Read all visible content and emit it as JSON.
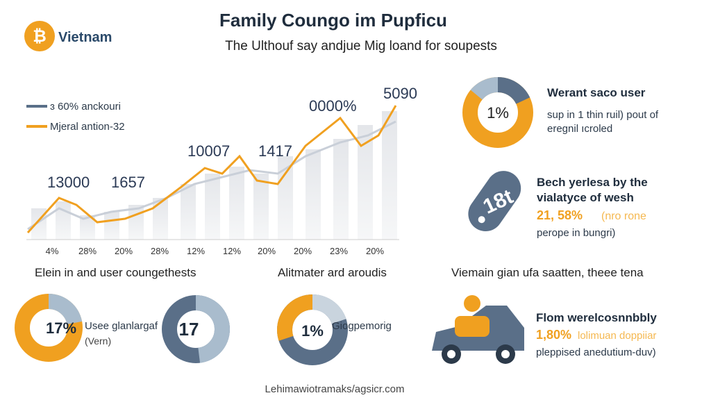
{
  "logo": {
    "icon": "₿",
    "name": "Vietnam"
  },
  "header": {
    "title": "Family Coungo im Pupficu",
    "subtitle": "The Ulthouf say andjue Mig loand for soupests"
  },
  "line_panel": {
    "legend": [
      "ɜ 60% anckouri",
      "Mjeral antion-32"
    ],
    "annotations": [
      "13000",
      "1657",
      "10007",
      "1417",
      "0000%",
      "5090"
    ],
    "x_labels": [
      "4%",
      "28%",
      "20%",
      "28%",
      "12%",
      "12%",
      "20%",
      "20%",
      "23%",
      "20%"
    ]
  },
  "stat_top": {
    "donut_label": "1%",
    "heading": "Werant saco user",
    "lines": [
      "sup in 1 thin ruil) pout of",
      "eregnil ıcroled"
    ]
  },
  "stat_tag": {
    "tag": "18t",
    "heading": [
      "Bech yerlesa by the",
      "vialatyce of wesh"
    ],
    "highlight": "21, 58%",
    "highlight_note": "(nro rone",
    "line": "perope in bungri)"
  },
  "sections": {
    "left": {
      "heading": "Elein in and user coungethests",
      "donut1_label": "17%",
      "donut1_text": [
        "Usee glanlargaf",
        "(Vern)"
      ],
      "donut2_label": "17"
    },
    "middle": {
      "heading": "Alitmater ard aroudis",
      "donut_label": "1%",
      "donut_text": "Giogpemorig"
    },
    "right": {
      "heading": "Viemain gian ufa saatten, theee tena",
      "title": "Flom werelcosnnbbly",
      "highlight": "1,80%",
      "highlight_note": "lolimuan doppiiar",
      "line": "pleppised anedutium-duv)"
    }
  },
  "footer": "Lehimawiotramaks/agsicr.com"
}
